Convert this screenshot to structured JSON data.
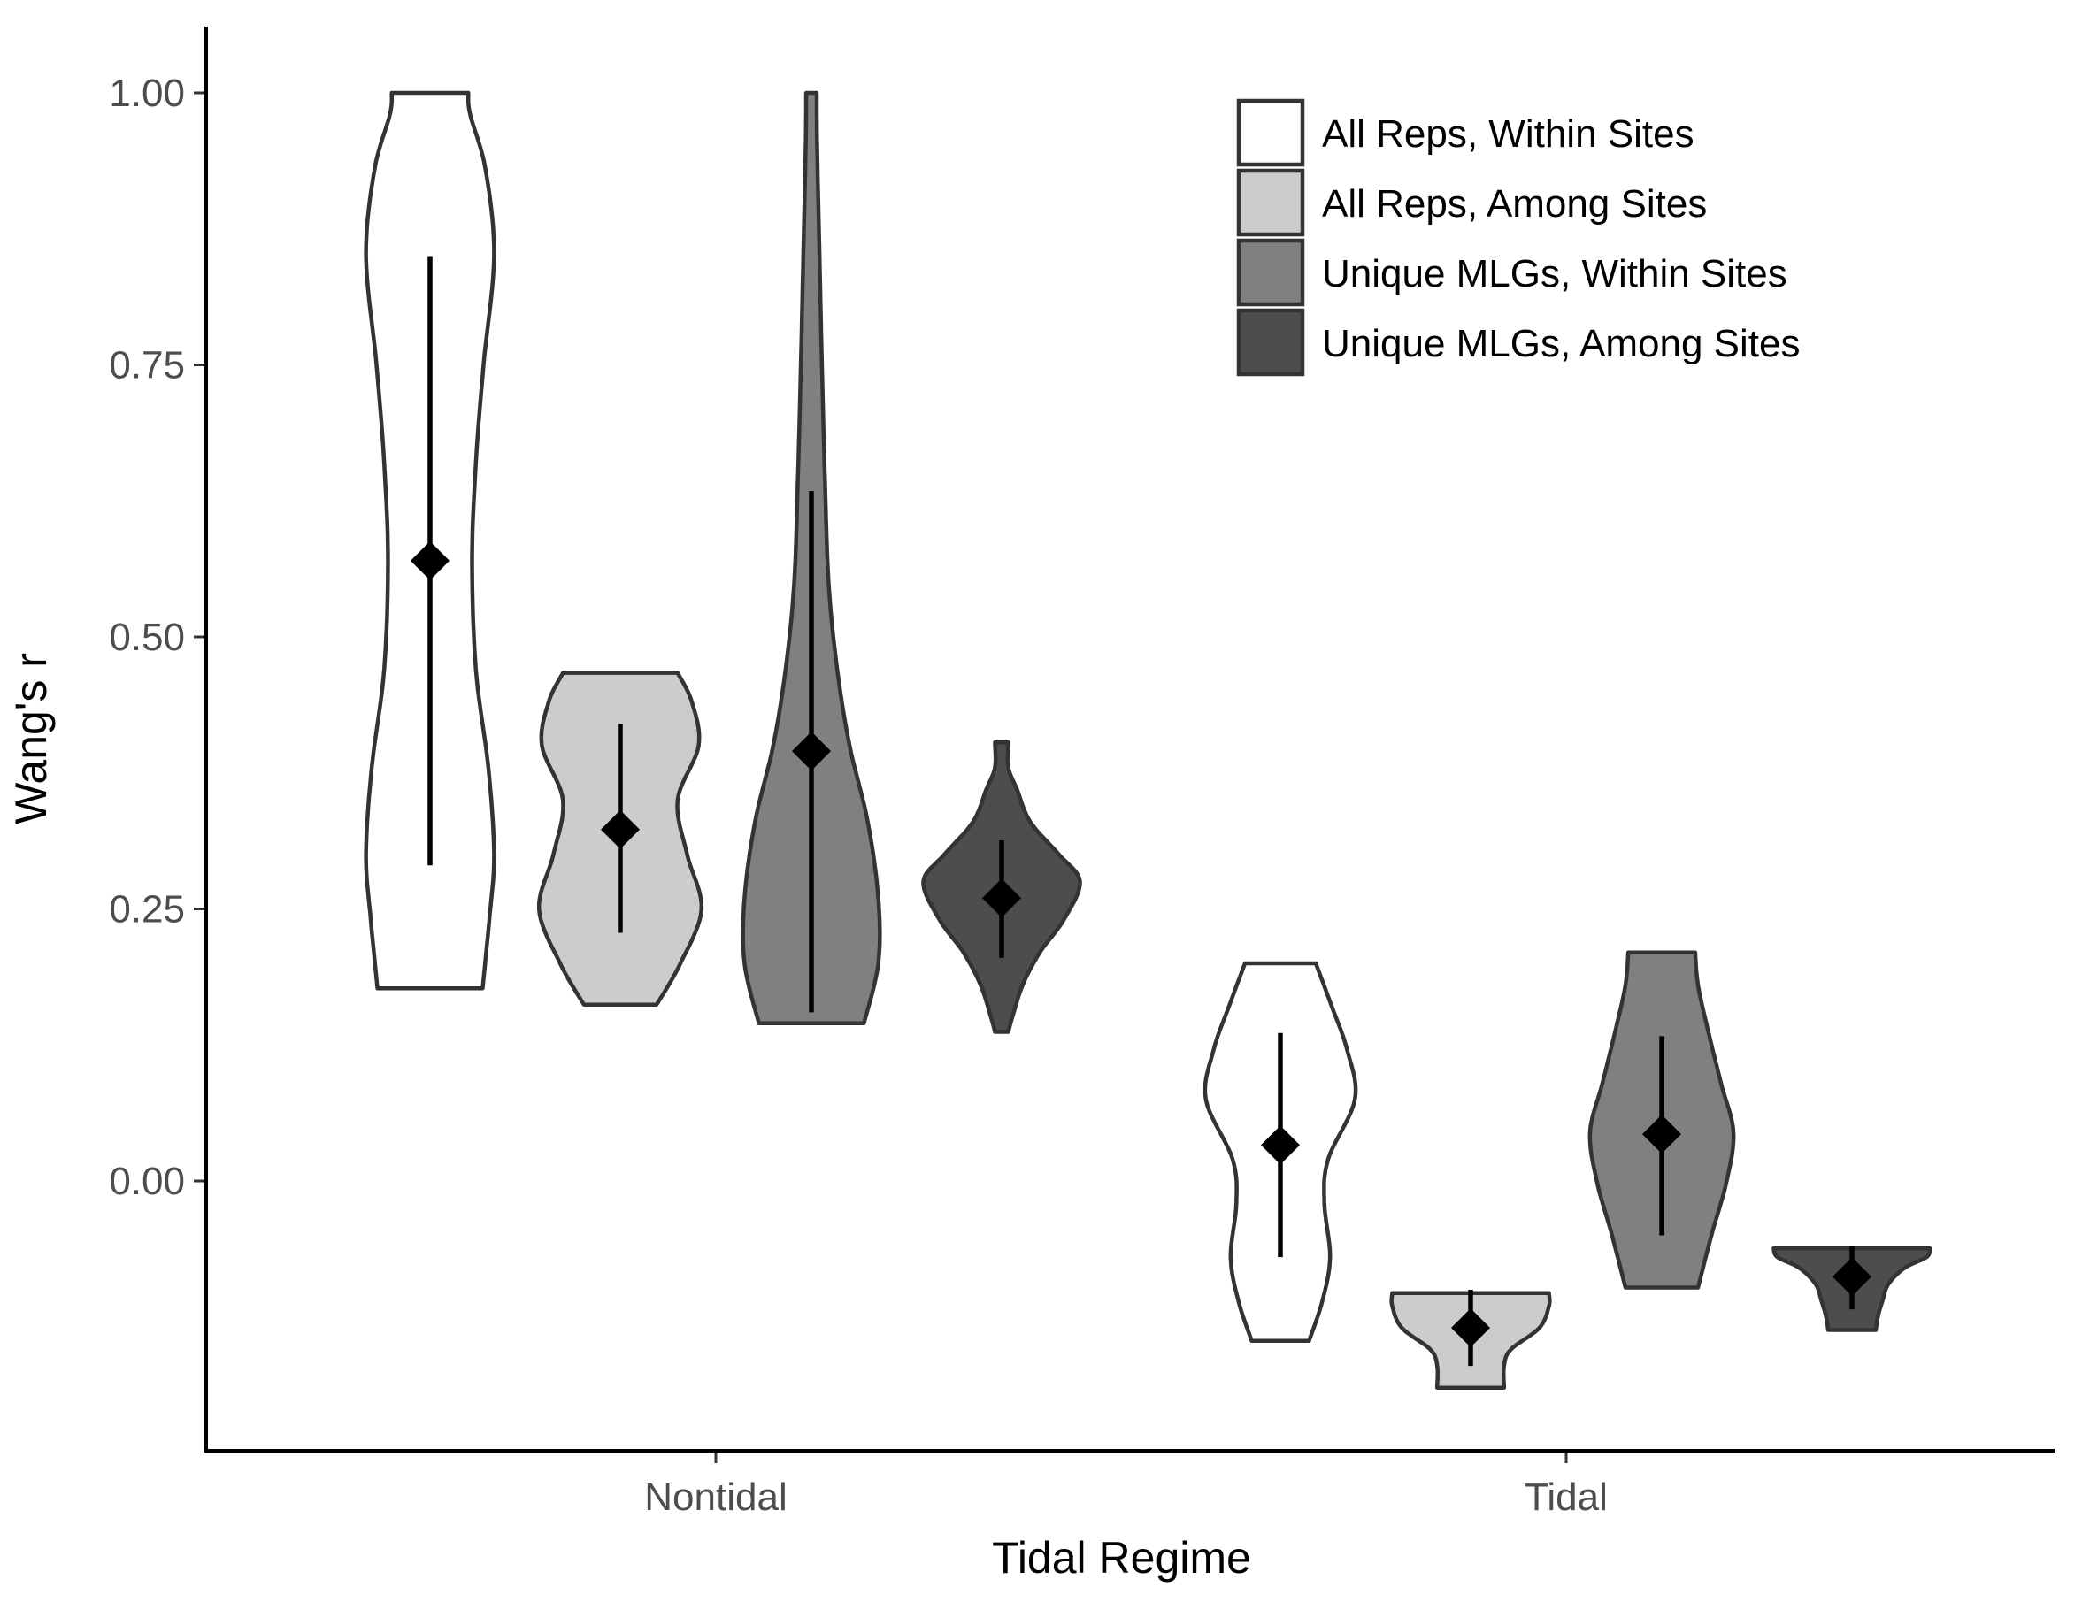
{
  "chart_data": {
    "type": "violin",
    "xlabel": "Tidal Regime",
    "ylabel": "Wang's r",
    "categories": [
      "Nontidal",
      "Tidal"
    ],
    "yticks": [
      "0.00",
      "0.25",
      "0.50",
      "0.75",
      "1.00"
    ],
    "ylim": [
      -0.23,
      1.06
    ],
    "legend_position": "top-right",
    "series": [
      {
        "name": "All Reps, Within Sites",
        "color": "#ffffff",
        "groups": [
          {
            "category": "Nontidal",
            "min": 0.177,
            "max": 1.0,
            "mean": 0.57,
            "lower": 0.29,
            "upper": 0.85,
            "profile": [
              [
                0.177,
                0.55
              ],
              [
                0.24,
                0.62
              ],
              [
                0.3,
                0.67
              ],
              [
                0.38,
                0.61
              ],
              [
                0.47,
                0.48
              ],
              [
                0.57,
                0.44
              ],
              [
                0.66,
                0.48
              ],
              [
                0.75,
                0.56
              ],
              [
                0.85,
                0.67
              ],
              [
                0.93,
                0.58
              ],
              [
                0.98,
                0.42
              ],
              [
                1.0,
                0.4
              ]
            ]
          },
          {
            "category": "Tidal",
            "min": -0.147,
            "max": 0.2,
            "mean": 0.033,
            "lower": -0.07,
            "upper": 0.136,
            "profile": [
              [
                -0.147,
                0.3
              ],
              [
                -0.11,
                0.44
              ],
              [
                -0.07,
                0.52
              ],
              [
                -0.02,
                0.46
              ],
              [
                0.02,
                0.5
              ],
              [
                0.075,
                0.78
              ],
              [
                0.12,
                0.7
              ],
              [
                0.16,
                0.54
              ],
              [
                0.2,
                0.37
              ]
            ]
          }
        ]
      },
      {
        "name": "All Reps, Among Sites",
        "color": "#cccccc",
        "groups": [
          {
            "category": "Nontidal",
            "min": 0.162,
            "max": 0.467,
            "mean": 0.323,
            "lower": 0.228,
            "upper": 0.42,
            "profile": [
              [
                0.162,
                0.38
              ],
              [
                0.2,
                0.63
              ],
              [
                0.25,
                0.85
              ],
              [
                0.3,
                0.7
              ],
              [
                0.35,
                0.6
              ],
              [
                0.4,
                0.82
              ],
              [
                0.44,
                0.75
              ],
              [
                0.467,
                0.6
              ]
            ]
          },
          {
            "category": "Tidal",
            "min": -0.19,
            "max": -0.103,
            "mean": -0.135,
            "lower": -0.17,
            "upper": -0.1,
            "profile": [
              [
                -0.19,
                0.35
              ],
              [
                -0.17,
                0.35
              ],
              [
                -0.155,
                0.42
              ],
              [
                -0.135,
                0.72
              ],
              [
                -0.115,
                0.82
              ],
              [
                -0.103,
                0.82
              ]
            ]
          }
        ]
      },
      {
        "name": "Unique MLGs, Within Sites",
        "color": "#808080",
        "groups": [
          {
            "category": "Nontidal",
            "min": 0.145,
            "max": 1.0,
            "mean": 0.395,
            "lower": 0.155,
            "upper": 0.634,
            "profile": [
              [
                0.145,
                0.55
              ],
              [
                0.2,
                0.7
              ],
              [
                0.26,
                0.7
              ],
              [
                0.33,
                0.59
              ],
              [
                0.4,
                0.4
              ],
              [
                0.47,
                0.27
              ],
              [
                0.55,
                0.18
              ],
              [
                0.65,
                0.14
              ],
              [
                0.75,
                0.11
              ],
              [
                0.85,
                0.085
              ],
              [
                0.95,
                0.06
              ],
              [
                1.0,
                0.055
              ]
            ]
          },
          {
            "category": "Tidal",
            "min": -0.098,
            "max": 0.21,
            "mean": 0.043,
            "lower": -0.05,
            "upper": 0.133,
            "profile": [
              [
                -0.098,
                0.38
              ],
              [
                -0.05,
                0.52
              ],
              [
                0.0,
                0.68
              ],
              [
                0.045,
                0.75
              ],
              [
                0.09,
                0.62
              ],
              [
                0.14,
                0.48
              ],
              [
                0.18,
                0.38
              ],
              [
                0.21,
                0.35
              ]
            ]
          }
        ]
      },
      {
        "name": "Unique MLGs, Among Sites",
        "color": "#4d4d4d",
        "groups": [
          {
            "category": "Nontidal",
            "min": 0.137,
            "max": 0.403,
            "mean": 0.26,
            "lower": 0.205,
            "upper": 0.313,
            "profile": [
              [
                0.137,
                0.07
              ],
              [
                0.15,
                0.11
              ],
              [
                0.18,
                0.22
              ],
              [
                0.21,
                0.4
              ],
              [
                0.24,
                0.65
              ],
              [
                0.275,
                0.82
              ],
              [
                0.3,
                0.6
              ],
              [
                0.33,
                0.3
              ],
              [
                0.36,
                0.16
              ],
              [
                0.38,
                0.07
              ],
              [
                0.403,
                0.07
              ]
            ]
          },
          {
            "category": "Tidal",
            "min": -0.137,
            "max": -0.062,
            "mean": -0.088,
            "lower": -0.118,
            "upper": -0.06,
            "profile": [
              [
                -0.137,
                0.25
              ],
              [
                -0.125,
                0.27
              ],
              [
                -0.11,
                0.32
              ],
              [
                -0.095,
                0.38
              ],
              [
                -0.08,
                0.55
              ],
              [
                -0.07,
                0.78
              ],
              [
                -0.062,
                0.82
              ]
            ]
          }
        ]
      }
    ]
  }
}
